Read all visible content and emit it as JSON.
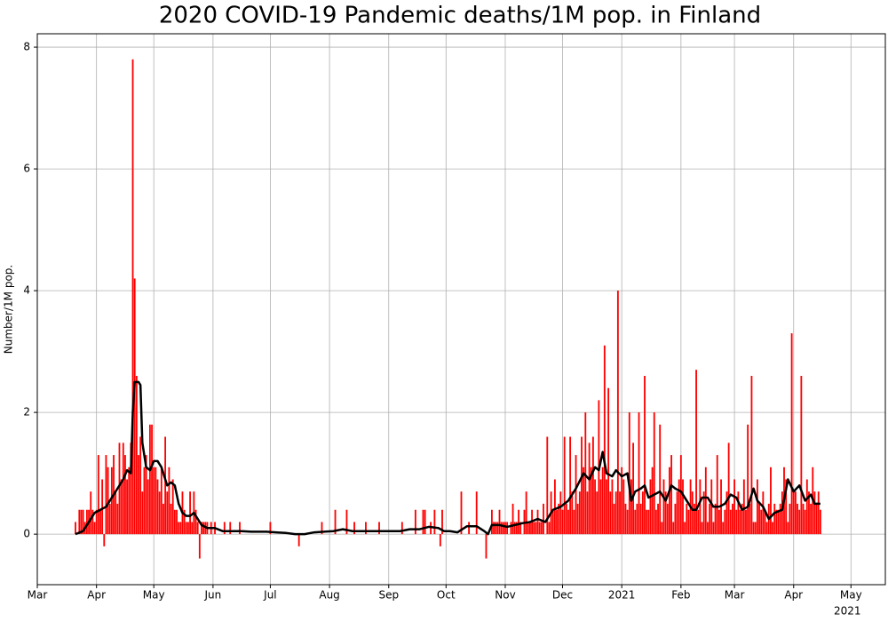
{
  "chart_data": {
    "type": "bar",
    "title": "2020 COVID-19 Pandemic deaths/1M pop. in Finland",
    "y_label": "Number/1M pop.",
    "xlim": [
      0,
      444
    ],
    "ylim": [
      -0.83,
      8.22
    ],
    "grid": true,
    "yticks": [
      0,
      2,
      4,
      6,
      8
    ],
    "xticks": [
      {
        "value": 0,
        "label": "Mar"
      },
      {
        "value": 31,
        "label": "Apr"
      },
      {
        "value": 61,
        "label": "May"
      },
      {
        "value": 92,
        "label": "Jun"
      },
      {
        "value": 122,
        "label": "Jul"
      },
      {
        "value": 153,
        "label": "Aug"
      },
      {
        "value": 184,
        "label": "Sep"
      },
      {
        "value": 214,
        "label": "Oct"
      },
      {
        "value": 245,
        "label": "Nov"
      },
      {
        "value": 275,
        "label": "Dec"
      },
      {
        "value": 306,
        "label": "2021"
      },
      {
        "value": 337,
        "label": "Feb"
      },
      {
        "value": 365,
        "label": "Mar"
      },
      {
        "value": 396,
        "label": "Apr"
      },
      {
        "value": 426,
        "label": "May"
      }
    ],
    "x_year_label": "2021",
    "series": [
      {
        "type": "bar",
        "color": "#ff0000",
        "x": [
          20,
          21,
          22,
          23,
          24,
          25,
          26,
          27,
          28,
          29,
          30,
          31,
          32,
          33,
          34,
          35,
          36,
          37,
          38,
          39,
          40,
          41,
          42,
          43,
          44,
          45,
          46,
          47,
          48,
          49,
          50,
          51,
          52,
          53,
          54,
          55,
          56,
          57,
          58,
          59,
          60,
          61,
          62,
          63,
          64,
          65,
          66,
          67,
          68,
          69,
          70,
          71,
          72,
          73,
          74,
          75,
          76,
          77,
          78,
          79,
          80,
          81,
          82,
          83,
          84,
          85,
          86,
          87,
          88,
          89,
          90,
          91,
          92,
          93,
          94,
          95,
          96,
          97,
          98,
          99,
          100,
          101,
          102,
          103,
          104,
          105,
          106,
          107,
          108,
          109,
          110,
          111,
          112,
          113,
          114,
          115,
          116,
          117,
          118,
          119,
          120,
          121,
          122,
          123,
          124,
          125,
          126,
          127,
          128,
          129,
          130,
          131,
          132,
          133,
          134,
          135,
          136,
          137,
          138,
          139,
          140,
          141,
          142,
          143,
          144,
          145,
          146,
          147,
          148,
          149,
          150,
          151,
          152,
          153,
          154,
          155,
          156,
          157,
          158,
          159,
          160,
          161,
          162,
          163,
          164,
          165,
          166,
          167,
          168,
          169,
          170,
          171,
          172,
          173,
          174,
          175,
          176,
          177,
          178,
          179,
          180,
          181,
          182,
          183,
          184,
          185,
          186,
          187,
          188,
          189,
          190,
          191,
          192,
          193,
          194,
          195,
          196,
          197,
          198,
          199,
          200,
          201,
          202,
          203,
          204,
          205,
          206,
          207,
          208,
          209,
          210,
          211,
          212,
          213,
          214,
          215,
          216,
          217,
          218,
          219,
          220,
          221,
          222,
          223,
          224,
          225,
          226,
          227,
          228,
          229,
          230,
          231,
          232,
          233,
          234,
          235,
          236,
          237,
          238,
          239,
          240,
          241,
          242,
          243,
          244,
          245,
          246,
          247,
          248,
          249,
          250,
          251,
          252,
          253,
          254,
          255,
          256,
          257,
          258,
          259,
          260,
          261,
          262,
          263,
          264,
          265,
          266,
          267,
          268,
          269,
          270,
          271,
          272,
          273,
          274,
          275,
          276,
          277,
          278,
          279,
          280,
          281,
          282,
          283,
          284,
          285,
          286,
          287,
          288,
          289,
          290,
          291,
          292,
          293,
          294,
          295,
          296,
          297,
          298,
          299,
          300,
          301,
          302,
          303,
          304,
          305,
          306,
          307,
          308,
          309,
          310,
          311,
          312,
          313,
          314,
          315,
          316,
          317,
          318,
          319,
          320,
          321,
          322,
          323,
          324,
          325,
          326,
          327,
          328,
          329,
          330,
          331,
          332,
          333,
          334,
          335,
          336,
          337,
          338,
          339,
          340,
          341,
          342,
          343,
          344,
          345,
          346,
          347,
          348,
          349,
          350,
          351,
          352,
          353,
          354,
          355,
          356,
          357,
          358,
          359,
          360,
          361,
          362,
          363,
          364,
          365,
          366,
          367,
          368,
          369,
          370,
          371,
          372,
          373,
          374,
          375,
          376,
          377,
          378,
          379,
          380,
          381,
          382,
          383,
          384,
          385,
          386,
          387,
          388,
          389,
          390,
          391,
          392,
          393,
          394,
          395,
          396,
          397,
          398,
          399,
          400,
          401,
          402,
          403,
          404,
          405,
          406,
          407,
          408,
          409,
          410
        ],
        "values": [
          0.2,
          0,
          0.4,
          0.4,
          0.4,
          0.2,
          0.4,
          0.4,
          0.7,
          0.4,
          0.2,
          0.4,
          1.3,
          0.4,
          0.9,
          -0.2,
          1.3,
          1.1,
          0.5,
          1.1,
          1.3,
          0.7,
          0.5,
          1.5,
          0.9,
          1.5,
          1.3,
          0.9,
          1.1,
          1.5,
          7.8,
          4.2,
          2.6,
          1.3,
          1.6,
          0.7,
          1.1,
          1.3,
          0.9,
          1.8,
          1.8,
          1.1,
          1.1,
          0.9,
          0.7,
          1.1,
          0.5,
          1.6,
          0.7,
          1.1,
          0.5,
          0.9,
          0.4,
          0.4,
          0.2,
          0.2,
          0.7,
          0.4,
          0.2,
          0.2,
          0.7,
          0.2,
          0.7,
          0.4,
          0.2,
          -0.4,
          0.2,
          0.2,
          0.2,
          0.2,
          0,
          0.2,
          0,
          0.2,
          0,
          0,
          0,
          0,
          0.2,
          0,
          0,
          0.2,
          0,
          0,
          0,
          0,
          0.2,
          0,
          0,
          0,
          0,
          0,
          0,
          0,
          0,
          0,
          0,
          0,
          0,
          0,
          0,
          0,
          0.2,
          0,
          0,
          0,
          0,
          0,
          0,
          0,
          0,
          0,
          0,
          0,
          0,
          0,
          0,
          -0.2,
          0,
          0,
          0,
          0,
          0,
          0,
          0,
          0,
          0,
          0,
          0,
          0.2,
          0,
          0,
          0,
          0,
          0,
          0,
          0.4,
          0,
          0,
          0,
          0,
          0,
          0.4,
          0,
          0,
          0,
          0.2,
          0,
          0,
          0,
          0,
          0,
          0.2,
          0,
          0,
          0,
          0,
          0,
          0,
          0.2,
          0,
          0,
          0,
          0,
          0,
          0,
          0,
          0,
          0,
          0,
          0,
          0.2,
          0,
          0,
          0,
          0,
          0,
          0,
          0.4,
          0,
          0,
          0,
          0.4,
          0.4,
          0,
          0,
          0.2,
          0,
          0.4,
          0,
          0,
          -0.2,
          0.4,
          0,
          0,
          0,
          0,
          0,
          0,
          0,
          0,
          0,
          0.7,
          0,
          0,
          0,
          0.2,
          0,
          0,
          0,
          0.7,
          0,
          0,
          0,
          0,
          -0.4,
          0,
          0,
          0.4,
          0.2,
          0.2,
          0.2,
          0.4,
          0.2,
          0.2,
          0.2,
          0.2,
          0,
          0.2,
          0.5,
          0.2,
          0.2,
          0.4,
          0.2,
          0,
          0.4,
          0.7,
          0.2,
          0.2,
          0.4,
          0.2,
          0.2,
          0.4,
          0.2,
          0.2,
          0.5,
          0,
          1.6,
          0.2,
          0.7,
          0.4,
          0.9,
          0.4,
          0.5,
          0.7,
          0.4,
          1.6,
          0.5,
          0.4,
          1.6,
          0.7,
          0.4,
          1.3,
          0.5,
          0.7,
          1.6,
          1.1,
          2.0,
          0.7,
          1.5,
          1.1,
          1.6,
          0.9,
          0.7,
          2.2,
          0.9,
          1.1,
          3.1,
          0.9,
          2.4,
          0.7,
          0.9,
          0.5,
          0.7,
          4.0,
          0.7,
          1.1,
          0.9,
          0.5,
          0.4,
          2.0,
          0.9,
          1.5,
          0.4,
          0.5,
          2.0,
          0.5,
          0.7,
          2.6,
          0.4,
          0.4,
          0.9,
          1.1,
          2.0,
          0.4,
          0.5,
          1.8,
          0.2,
          0.9,
          0.7,
          0.5,
          1.1,
          1.3,
          0.2,
          0.5,
          0.7,
          0.9,
          1.3,
          0.9,
          0.2,
          0.5,
          0.4,
          0.9,
          0.7,
          0.5,
          2.7,
          0.4,
          0.9,
          0.2,
          0.7,
          1.1,
          0.2,
          0.5,
          0.9,
          0.2,
          0.5,
          1.3,
          0.4,
          0.9,
          0.2,
          0.4,
          0.7,
          1.5,
          0.4,
          0.5,
          0.9,
          0.4,
          0.7,
          0.4,
          0.5,
          0.9,
          0.4,
          1.8,
          0.5,
          2.6,
          0.2,
          0.2,
          0.9,
          0.5,
          0.4,
          0.7,
          0.4,
          0.2,
          0.5,
          1.1,
          0.2,
          0.5,
          0.4,
          0.4,
          0.5,
          0.7,
          1.1,
          0.9,
          0.2,
          0.5,
          3.3,
          0.7,
          0.7,
          0.5,
          0.4,
          2.6,
          0.5,
          0.4,
          0.9,
          0.7,
          0.5,
          1.1,
          0.7,
          0.5,
          0.7,
          0.4
        ]
      },
      {
        "type": "line",
        "color": "#000000",
        "x": [
          20,
          24,
          27,
          30,
          33,
          36,
          39,
          42,
          45,
          47,
          49,
          50,
          51,
          53,
          54,
          55,
          57,
          59,
          61,
          63,
          65,
          67,
          68,
          70,
          72,
          74,
          76,
          78,
          80,
          82,
          84,
          86,
          89,
          93,
          97,
          102,
          107,
          112,
          120,
          125,
          130,
          135,
          140,
          145,
          150,
          155,
          160,
          165,
          170,
          180,
          190,
          195,
          200,
          205,
          210,
          213,
          216,
          220,
          225,
          230,
          234,
          236,
          238,
          242,
          246,
          250,
          254,
          258,
          262,
          266,
          270,
          274,
          278,
          282,
          286,
          289,
          292,
          294,
          296,
          298,
          301,
          303,
          306,
          309,
          311,
          313,
          316,
          318,
          320,
          323,
          326,
          329,
          332,
          334,
          337,
          340,
          343,
          345,
          348,
          351,
          354,
          357,
          360,
          363,
          366,
          369,
          372,
          375,
          377,
          380,
          383,
          386,
          390,
          393,
          396,
          399,
          402,
          405,
          407,
          410
        ],
        "values": [
          0,
          0.05,
          0.2,
          0.35,
          0.4,
          0.45,
          0.6,
          0.75,
          0.9,
          1.05,
          1.0,
          2.0,
          2.5,
          2.5,
          2.45,
          1.5,
          1.1,
          1.05,
          1.2,
          1.2,
          1.1,
          0.9,
          0.8,
          0.85,
          0.8,
          0.5,
          0.35,
          0.3,
          0.3,
          0.35,
          0.25,
          0.15,
          0.1,
          0.1,
          0.05,
          0.05,
          0.05,
          0.04,
          0.04,
          0.03,
          0.02,
          0,
          0,
          0.03,
          0.04,
          0.05,
          0.08,
          0.05,
          0.05,
          0.05,
          0.05,
          0.08,
          0.08,
          0.12,
          0.1,
          0.05,
          0.05,
          0.03,
          0.13,
          0.13,
          0.05,
          0,
          0.15,
          0.15,
          0.12,
          0.15,
          0.18,
          0.2,
          0.25,
          0.2,
          0.4,
          0.45,
          0.55,
          0.75,
          1.0,
          0.9,
          1.1,
          1.05,
          1.35,
          1.0,
          0.95,
          1.05,
          0.95,
          1.0,
          0.55,
          0.7,
          0.75,
          0.8,
          0.6,
          0.65,
          0.7,
          0.55,
          0.8,
          0.75,
          0.7,
          0.55,
          0.4,
          0.4,
          0.6,
          0.6,
          0.45,
          0.45,
          0.5,
          0.65,
          0.6,
          0.4,
          0.45,
          0.75,
          0.55,
          0.45,
          0.25,
          0.35,
          0.4,
          0.9,
          0.7,
          0.8,
          0.55,
          0.65,
          0.5,
          0.5
        ]
      }
    ]
  }
}
